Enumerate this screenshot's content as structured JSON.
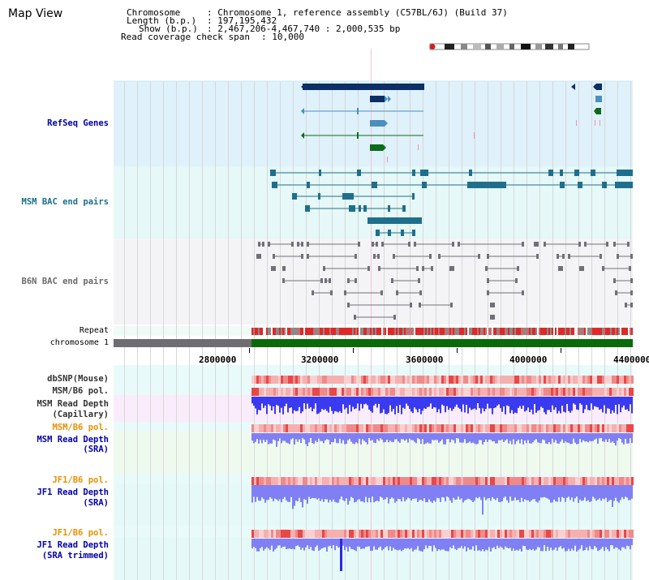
{
  "title": "Map View",
  "info": {
    "chromosome_key": "Chromosome",
    "chromosome_val": ": Chromosome 1, reference assembly (C57BL/6J) (Build 37)",
    "length_key": "Length (b.p.)",
    "length_val": ": 197,195,432",
    "show_key": "Show (b.p.)",
    "show_val": ": 2,467,206-4,467,740 : 2,000,535 bp",
    "coverage_key": "Read coverage check span",
    "coverage_val": ": 10,000"
  },
  "tracks": {
    "refseq": "RefSeq Genes",
    "msm_bac": "MSM BAC end pairs",
    "b6n_bac": "B6N BAC end pairs",
    "repeat": "Repeat",
    "chromosome": "chromosome 1",
    "dbsnp": "dbSNP(Mouse)",
    "msm_b6_pol_1": "MSM/B6 pol.",
    "msm_depth_cap_1": "MSM Read Depth",
    "msm_depth_cap_2": "(Capillary)",
    "msm_b6_pol_2": "MSM/B6 pol.",
    "msm_depth_sra_1": "MSM Read Depth",
    "msm_depth_sra_2": "(SRA)",
    "jf1_b6_pol_1": "JF1/B6 pol.",
    "jf1_depth_sra_1": "JF1 Read Depth",
    "jf1_depth_sra_2": "(SRA)",
    "jf1_b6_pol_2": "JF1/B6 pol.",
    "jf1_depth_trim_1": "JF1 Read Depth",
    "jf1_depth_trim_2": "(SRA trimmed)"
  },
  "ruler": {
    "ticks": [
      "2800000",
      "3200000",
      "3600000",
      "4000000",
      "4400000"
    ]
  },
  "colors": {
    "refseq_bg": "#dff1fa",
    "msm_bg": "#e6f8f8",
    "b6n_bg": "#f4f4f6",
    "pink_bg": "#fbecfb",
    "green_bg": "#effaef",
    "cyan_bg": "#e6f9f9",
    "gene_navy": "#0b2f66",
    "gene_light": "#4a8fbe",
    "gene_green": "#0c6b1a",
    "msm_pair": "#1f6f8c",
    "b6n_pair": "#707078",
    "depth_blue": "#3a3af0",
    "depth_lightblue": "#8080f4",
    "pol_red": "#f0a0a0",
    "label_blue": "#0000aa",
    "label_orange": "#e89000"
  }
}
